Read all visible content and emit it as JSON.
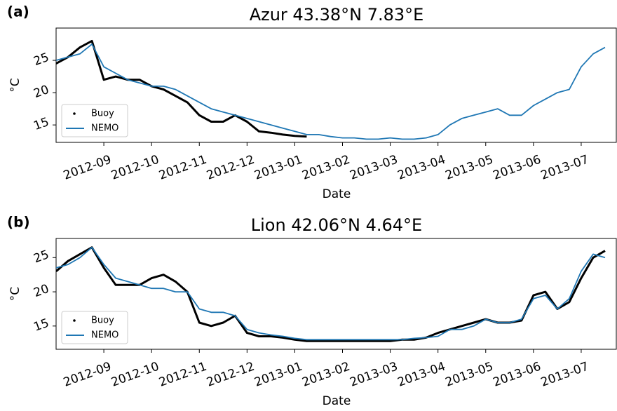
{
  "chart_data": [
    {
      "type": "line",
      "panel": "(a)",
      "title": "Azur 43.38°N 7.83°E",
      "x_label": "Date",
      "y_label": "°C",
      "categories": [
        null,
        null,
        null,
        null,
        "2012-09",
        null,
        null,
        null,
        "2012-10",
        null,
        null,
        null,
        "2012-11",
        null,
        null,
        null,
        "2012-12",
        null,
        null,
        null,
        "2013-01",
        null,
        null,
        null,
        "2013-02",
        null,
        null,
        null,
        "2013-03",
        null,
        null,
        null,
        "2013-04",
        null,
        null,
        null,
        "2013-05",
        null,
        null,
        null,
        "2013-06",
        null,
        null,
        null,
        "2013-07",
        null,
        null
      ],
      "ylim": [
        12.3,
        30
      ],
      "yticks": [
        15,
        20,
        25
      ],
      "legend": "lower left",
      "series": [
        {
          "name": "Buoy",
          "color": "#000000",
          "values": [
            24.5,
            25.5,
            27,
            28,
            22,
            22.5,
            22,
            22,
            21,
            20.5,
            19.5,
            18.5,
            16.5,
            15.5,
            15.5,
            16.5,
            15.5,
            14,
            13.8,
            13.5,
            13.3,
            13.2,
            null,
            null,
            null,
            null,
            null,
            null,
            null,
            null,
            null,
            null,
            null,
            null,
            null,
            null,
            null,
            null,
            null,
            null,
            null,
            null,
            null,
            null,
            null,
            null,
            null
          ]
        },
        {
          "name": "NEMO",
          "color": "#1f77b4",
          "values": [
            25,
            25.5,
            26,
            27.5,
            24,
            23,
            22,
            21.5,
            21,
            21,
            20.5,
            19.5,
            18.5,
            17.5,
            17,
            16.5,
            16,
            15.5,
            15,
            14.5,
            14,
            13.5,
            13.5,
            13.2,
            13,
            13,
            12.8,
            12.8,
            13,
            12.8,
            12.8,
            13,
            13.5,
            15,
            16,
            16.5,
            17,
            17.5,
            16.5,
            16.5,
            18,
            19,
            20,
            20.5,
            24,
            26,
            27
          ]
        }
      ]
    },
    {
      "type": "line",
      "panel": "(b)",
      "title": "Lion 42.06°N 4.64°E",
      "x_label": "Date",
      "y_label": "°C",
      "categories": [
        null,
        null,
        null,
        null,
        "2012-09",
        null,
        null,
        null,
        "2012-10",
        null,
        null,
        null,
        "2012-11",
        null,
        null,
        null,
        "2012-12",
        null,
        null,
        null,
        "2013-01",
        null,
        null,
        null,
        "2013-02",
        null,
        null,
        null,
        "2013-03",
        null,
        null,
        null,
        "2013-04",
        null,
        null,
        null,
        "2013-05",
        null,
        null,
        null,
        "2013-06",
        null,
        null,
        null,
        "2013-07",
        null,
        null
      ],
      "ylim": [
        11.6,
        27.8
      ],
      "yticks": [
        15,
        20,
        25
      ],
      "legend": "lower left",
      "series": [
        {
          "name": "Buoy",
          "color": "#000000",
          "values": [
            23,
            24.5,
            25.5,
            26.5,
            23.5,
            21,
            21,
            21,
            22,
            22.5,
            21.5,
            20,
            15.5,
            15,
            15.5,
            16.5,
            14,
            13.5,
            13.5,
            13.3,
            13,
            12.8,
            12.8,
            12.8,
            12.8,
            12.8,
            12.8,
            12.8,
            12.8,
            13,
            13,
            13.3,
            14,
            14.5,
            15,
            15.5,
            16,
            15.5,
            15.5,
            15.8,
            19.5,
            20,
            17.5,
            18.5,
            22,
            25,
            26
          ]
        },
        {
          "name": "NEMO",
          "color": "#1f77b4",
          "values": [
            23.5,
            24,
            25,
            26.5,
            24,
            22,
            21.5,
            21,
            20.5,
            20.5,
            20,
            20,
            17.5,
            17,
            17,
            16.5,
            14.5,
            14,
            13.7,
            13.5,
            13.2,
            13,
            13,
            13,
            13,
            13,
            13,
            13,
            13,
            13,
            13.2,
            13.3,
            13.5,
            14.5,
            14.5,
            15,
            16,
            15.5,
            15.5,
            16,
            19,
            19.5,
            17.5,
            19,
            23,
            25.5,
            25
          ]
        }
      ]
    }
  ]
}
